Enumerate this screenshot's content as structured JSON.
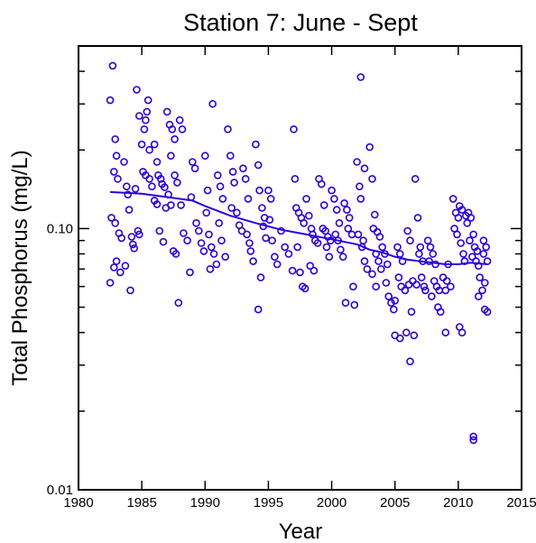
{
  "chart_data": {
    "type": "scatter",
    "title": "Station 7: June - Sept",
    "xlabel": "Year",
    "ylabel": "Total Phosphorus (mg/L)",
    "xlim": [
      1980,
      2015
    ],
    "ylim": [
      0.01,
      0.5
    ],
    "y_scale": "log",
    "x_ticks": [
      1980,
      1985,
      1990,
      1995,
      2000,
      2005,
      2010,
      2015
    ],
    "y_tick_labels": [
      {
        "value": 0.01,
        "label": "0.01"
      },
      {
        "value": 0.1,
        "label": "0.10"
      }
    ],
    "colors": {
      "points": "#2b00d6",
      "trend": "#2b00d6",
      "axes": "#000000"
    },
    "marker": "open-circle",
    "series": [
      {
        "kind": "points",
        "points": [
          [
            1982.5,
            0.31
          ],
          [
            1982.7,
            0.42
          ],
          [
            1982.9,
            0.22
          ],
          [
            1983.0,
            0.19
          ],
          [
            1982.8,
            0.165
          ],
          [
            1983.1,
            0.155
          ],
          [
            1982.6,
            0.11
          ],
          [
            1982.9,
            0.105
          ],
          [
            1983.2,
            0.096
          ],
          [
            1983.4,
            0.092
          ],
          [
            1983.0,
            0.075
          ],
          [
            1982.8,
            0.071
          ],
          [
            1983.3,
            0.068
          ],
          [
            1982.5,
            0.062
          ],
          [
            1983.6,
            0.18
          ],
          [
            1983.8,
            0.145
          ],
          [
            1983.9,
            0.135
          ],
          [
            1984.0,
            0.118
          ],
          [
            1984.2,
            0.093
          ],
          [
            1984.3,
            0.087
          ],
          [
            1984.4,
            0.084
          ],
          [
            1983.7,
            0.072
          ],
          [
            1984.1,
            0.058
          ],
          [
            1984.5,
            0.142
          ],
          [
            1984.7,
            0.098
          ],
          [
            1984.8,
            0.095
          ],
          [
            1984.6,
            0.34
          ],
          [
            1984.8,
            0.27
          ],
          [
            1985.0,
            0.21
          ],
          [
            1985.2,
            0.24
          ],
          [
            1985.3,
            0.26
          ],
          [
            1985.4,
            0.28
          ],
          [
            1985.5,
            0.31
          ],
          [
            1985.6,
            0.2
          ],
          [
            1985.1,
            0.165
          ],
          [
            1985.3,
            0.16
          ],
          [
            1985.6,
            0.155
          ],
          [
            1985.8,
            0.145
          ],
          [
            1986.0,
            0.21
          ],
          [
            1986.2,
            0.18
          ],
          [
            1986.3,
            0.16
          ],
          [
            1986.5,
            0.155
          ],
          [
            1986.6,
            0.148
          ],
          [
            1986.8,
            0.144
          ],
          [
            1986.0,
            0.128
          ],
          [
            1986.2,
            0.124
          ],
          [
            1986.9,
            0.12
          ],
          [
            1986.4,
            0.098
          ],
          [
            1986.7,
            0.089
          ],
          [
            1987.0,
            0.28
          ],
          [
            1987.2,
            0.25
          ],
          [
            1987.4,
            0.24
          ],
          [
            1987.6,
            0.22
          ],
          [
            1987.3,
            0.19
          ],
          [
            1987.6,
            0.16
          ],
          [
            1987.8,
            0.15
          ],
          [
            1988.0,
            0.26
          ],
          [
            1988.2,
            0.24
          ],
          [
            1987.1,
            0.135
          ],
          [
            1987.3,
            0.123
          ],
          [
            1987.5,
            0.082
          ],
          [
            1987.7,
            0.08
          ],
          [
            1987.9,
            0.052
          ],
          [
            1988.1,
            0.123
          ],
          [
            1988.3,
            0.096
          ],
          [
            1988.6,
            0.09
          ],
          [
            1988.8,
            0.068
          ],
          [
            1989.0,
            0.18
          ],
          [
            1989.2,
            0.17
          ],
          [
            1988.9,
            0.132
          ],
          [
            1989.3,
            0.105
          ],
          [
            1989.5,
            0.098
          ],
          [
            1989.7,
            0.088
          ],
          [
            1989.9,
            0.082
          ],
          [
            1990.0,
            0.19
          ],
          [
            1990.2,
            0.14
          ],
          [
            1990.1,
            0.115
          ],
          [
            1990.3,
            0.095
          ],
          [
            1990.5,
            0.085
          ],
          [
            1990.7,
            0.08
          ],
          [
            1990.9,
            0.073
          ],
          [
            1990.4,
            0.07
          ],
          [
            1990.6,
            0.3
          ],
          [
            1991.0,
            0.16
          ],
          [
            1991.2,
            0.145
          ],
          [
            1991.4,
            0.13
          ],
          [
            1991.1,
            0.105
          ],
          [
            1991.3,
            0.09
          ],
          [
            1991.6,
            0.078
          ],
          [
            1991.8,
            0.24
          ],
          [
            1992.0,
            0.19
          ],
          [
            1992.2,
            0.165
          ],
          [
            1992.3,
            0.15
          ],
          [
            1992.1,
            0.12
          ],
          [
            1992.5,
            0.115
          ],
          [
            1992.7,
            0.103
          ],
          [
            1992.9,
            0.098
          ],
          [
            1993.0,
            0.17
          ],
          [
            1993.2,
            0.155
          ],
          [
            1993.4,
            0.13
          ],
          [
            1993.3,
            0.095
          ],
          [
            1993.5,
            0.088
          ],
          [
            1993.6,
            0.082
          ],
          [
            1993.8,
            0.075
          ],
          [
            1994.0,
            0.21
          ],
          [
            1994.2,
            0.175
          ],
          [
            1994.3,
            0.14
          ],
          [
            1994.5,
            0.12
          ],
          [
            1994.7,
            0.11
          ],
          [
            1994.6,
            0.102
          ],
          [
            1994.8,
            0.092
          ],
          [
            1994.4,
            0.065
          ],
          [
            1994.2,
            0.049
          ],
          [
            1995.0,
            0.14
          ],
          [
            1995.2,
            0.13
          ],
          [
            1995.1,
            0.108
          ],
          [
            1995.3,
            0.09
          ],
          [
            1995.5,
            0.078
          ],
          [
            1995.7,
            0.073
          ],
          [
            1996.0,
            0.098
          ],
          [
            1996.3,
            0.085
          ],
          [
            1996.6,
            0.08
          ],
          [
            1996.9,
            0.069
          ],
          [
            1997.0,
            0.24
          ],
          [
            1997.1,
            0.155
          ],
          [
            1997.2,
            0.12
          ],
          [
            1997.4,
            0.115
          ],
          [
            1997.6,
            0.11
          ],
          [
            1997.8,
            0.105
          ],
          [
            1997.3,
            0.085
          ],
          [
            1997.5,
            0.068
          ],
          [
            1997.7,
            0.06
          ],
          [
            1997.9,
            0.059
          ],
          [
            1998.0,
            0.13
          ],
          [
            1998.2,
            0.112
          ],
          [
            1998.4,
            0.1
          ],
          [
            1998.5,
            0.095
          ],
          [
            1998.7,
            0.09
          ],
          [
            1998.9,
            0.088
          ],
          [
            1998.3,
            0.072
          ],
          [
            1998.6,
            0.069
          ],
          [
            1999.0,
            0.155
          ],
          [
            1999.2,
            0.148
          ],
          [
            1999.4,
            0.123
          ],
          [
            1999.3,
            0.1
          ],
          [
            1999.5,
            0.098
          ],
          [
            1999.7,
            0.093
          ],
          [
            1999.9,
            0.09
          ],
          [
            1999.6,
            0.085
          ],
          [
            1999.8,
            0.078
          ],
          [
            2000.0,
            0.14
          ],
          [
            2000.2,
            0.13
          ],
          [
            2000.4,
            0.118
          ],
          [
            2000.6,
            0.105
          ],
          [
            2000.3,
            0.095
          ],
          [
            2000.5,
            0.09
          ],
          [
            2000.7,
            0.083
          ],
          [
            2000.9,
            0.078
          ],
          [
            2001.0,
            0.125
          ],
          [
            2001.2,
            0.118
          ],
          [
            2001.4,
            0.11
          ],
          [
            2001.3,
            0.1
          ],
          [
            2001.6,
            0.095
          ],
          [
            2001.1,
            0.052
          ],
          [
            2001.8,
            0.051
          ],
          [
            2001.7,
            0.06
          ],
          [
            2002.0,
            0.18
          ],
          [
            2002.2,
            0.145
          ],
          [
            2002.3,
            0.13
          ],
          [
            2002.1,
            0.095
          ],
          [
            2002.5,
            0.09
          ],
          [
            2002.4,
            0.085
          ],
          [
            2002.6,
            0.075
          ],
          [
            2002.8,
            0.07
          ],
          [
            2002.3,
            0.38
          ],
          [
            2002.6,
            0.17
          ],
          [
            2003.0,
            0.205
          ],
          [
            2003.2,
            0.155
          ],
          [
            2003.4,
            0.113
          ],
          [
            2003.3,
            0.1
          ],
          [
            2003.6,
            0.097
          ],
          [
            2003.8,
            0.093
          ],
          [
            2003.5,
            0.08
          ],
          [
            2003.7,
            0.075
          ],
          [
            2003.9,
            0.07
          ],
          [
            2003.2,
            0.067
          ],
          [
            2003.5,
            0.06
          ],
          [
            2004.0,
            0.085
          ],
          [
            2004.2,
            0.08
          ],
          [
            2004.4,
            0.073
          ],
          [
            2004.3,
            0.062
          ],
          [
            2004.5,
            0.055
          ],
          [
            2004.7,
            0.052
          ],
          [
            2004.9,
            0.049
          ],
          [
            2005.0,
            0.053
          ],
          [
            2005.2,
            0.085
          ],
          [
            2005.4,
            0.08
          ],
          [
            2005.6,
            0.075
          ],
          [
            2005.3,
            0.065
          ],
          [
            2005.5,
            0.06
          ],
          [
            2005.8,
            0.058
          ],
          [
            2005.0,
            0.039
          ],
          [
            2005.4,
            0.038
          ],
          [
            2005.9,
            0.04
          ],
          [
            2006.0,
            0.098
          ],
          [
            2006.2,
            0.09
          ],
          [
            2006.4,
            0.063
          ],
          [
            2006.1,
            0.061
          ],
          [
            2006.3,
            0.048
          ],
          [
            2006.5,
            0.039
          ],
          [
            2006.6,
            0.155
          ],
          [
            2006.8,
            0.11
          ],
          [
            2007.0,
            0.085
          ],
          [
            2006.9,
            0.08
          ],
          [
            2007.2,
            0.075
          ],
          [
            2007.1,
            0.065
          ],
          [
            2007.3,
            0.06
          ],
          [
            2007.4,
            0.058
          ],
          [
            2006.7,
            0.061
          ],
          [
            2006.2,
            0.031
          ],
          [
            2007.6,
            0.09
          ],
          [
            2007.8,
            0.085
          ],
          [
            2008.0,
            0.08
          ],
          [
            2007.7,
            0.075
          ],
          [
            2008.2,
            0.073
          ],
          [
            2008.1,
            0.063
          ],
          [
            2008.3,
            0.06
          ],
          [
            2008.5,
            0.058
          ],
          [
            2007.9,
            0.055
          ],
          [
            2008.4,
            0.05
          ],
          [
            2008.6,
            0.048
          ],
          [
            2008.8,
            0.065
          ],
          [
            2009.0,
            0.058
          ],
          [
            2009.2,
            0.073
          ],
          [
            2009.4,
            0.06
          ],
          [
            2009.1,
            0.063
          ],
          [
            2009.6,
            0.13
          ],
          [
            2009.8,
            0.115
          ],
          [
            2010.0,
            0.11
          ],
          [
            2009.7,
            0.1
          ],
          [
            2009.9,
            0.095
          ],
          [
            2010.2,
            0.088
          ],
          [
            2010.4,
            0.08
          ],
          [
            2010.5,
            0.075
          ],
          [
            2010.6,
            0.112
          ],
          [
            2010.8,
            0.115
          ],
          [
            2011.0,
            0.11
          ],
          [
            2010.7,
            0.105
          ],
          [
            2011.2,
            0.095
          ],
          [
            2010.9,
            0.09
          ],
          [
            2011.3,
            0.085
          ],
          [
            2011.5,
            0.082
          ],
          [
            2011.1,
            0.078
          ],
          [
            2011.4,
            0.075
          ],
          [
            2011.6,
            0.072
          ],
          [
            2011.7,
            0.065
          ],
          [
            2011.9,
            0.058
          ],
          [
            2011.6,
            0.055
          ],
          [
            2012.0,
            0.09
          ],
          [
            2012.2,
            0.085
          ],
          [
            2012.0,
            0.08
          ],
          [
            2012.3,
            0.075
          ],
          [
            2012.1,
            0.062
          ],
          [
            2012.1,
            0.049
          ],
          [
            2012.3,
            0.048
          ],
          [
            2011.2,
            0.0155
          ],
          [
            2011.2,
            0.016
          ],
          [
            2010.1,
            0.042
          ],
          [
            2010.3,
            0.04
          ],
          [
            2009.0,
            0.04
          ],
          [
            2010.1,
            0.122
          ],
          [
            2010.3,
            0.118
          ]
        ]
      },
      {
        "kind": "trend",
        "points": [
          [
            1982.5,
            0.138
          ],
          [
            1985.0,
            0.136
          ],
          [
            1987.0,
            0.132
          ],
          [
            1989.0,
            0.128
          ],
          [
            1990.0,
            0.122
          ],
          [
            1992.0,
            0.112
          ],
          [
            1994.0,
            0.105
          ],
          [
            1996.0,
            0.099
          ],
          [
            1998.0,
            0.095
          ],
          [
            2000.0,
            0.091
          ],
          [
            2002.0,
            0.087
          ],
          [
            2003.0,
            0.083
          ],
          [
            2004.0,
            0.081
          ],
          [
            2005.0,
            0.078
          ],
          [
            2006.0,
            0.076
          ],
          [
            2007.0,
            0.075
          ],
          [
            2008.0,
            0.074
          ],
          [
            2009.0,
            0.073
          ],
          [
            2010.0,
            0.073
          ],
          [
            2011.0,
            0.074
          ],
          [
            2012.3,
            0.073
          ]
        ]
      }
    ]
  }
}
